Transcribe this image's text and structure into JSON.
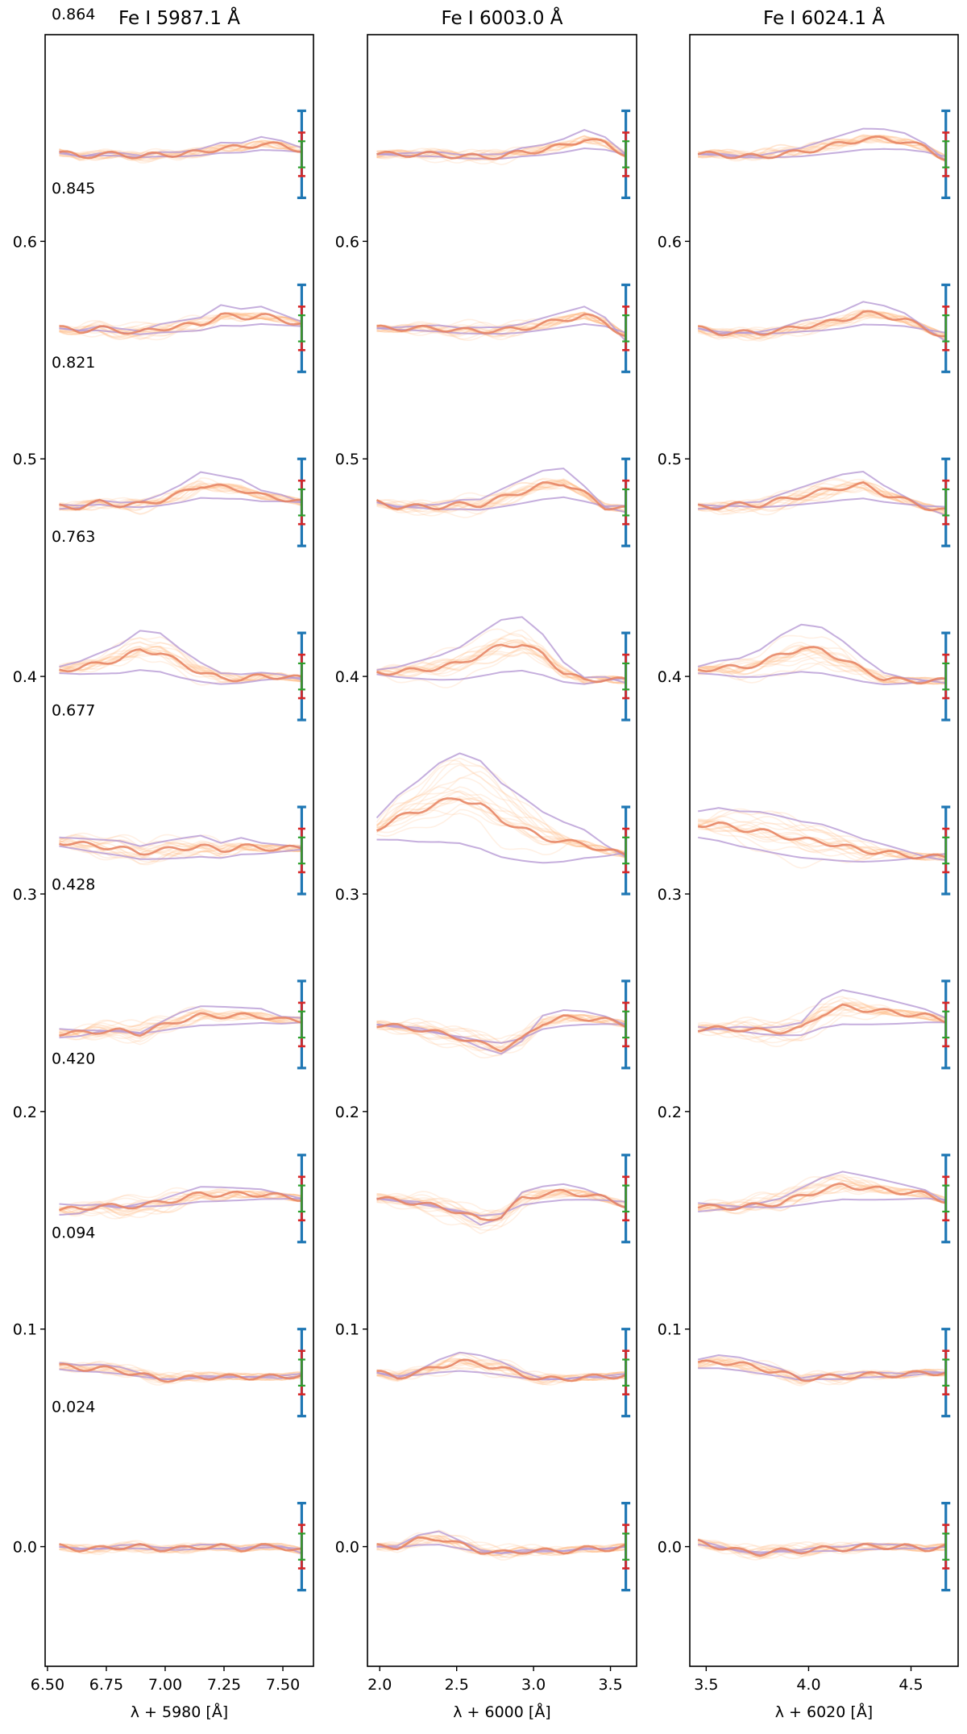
{
  "chart_data": [
    {
      "type": "line",
      "title": "Fe I 5987.1 Å",
      "xlabel": "λ + 5980 [Å]",
      "ylabel": "",
      "xlim": [
        6.49,
        7.63
      ],
      "ylim": [
        -0.055,
        0.695
      ],
      "xticks": [
        6.5,
        6.75,
        7.0,
        7.25,
        7.5
      ],
      "xtick_labels": [
        "6.50",
        "6.75",
        "7.00",
        "7.25",
        "7.50"
      ],
      "yticks": [
        0.0,
        0.1,
        0.2,
        0.3,
        0.4,
        0.5,
        0.6
      ],
      "ytick_labels": [
        "0.0",
        "0.1",
        "0.2",
        "0.3",
        "0.4",
        "0.5",
        "0.6"
      ],
      "x_range": [
        6.55,
        7.58
      ],
      "errorbar_x": 7.58,
      "row_labels": [
        "0.864",
        "0.845",
        "0.821",
        "0.763",
        "0.677",
        "0.428",
        "0.420",
        "0.094",
        "0.024"
      ],
      "row_offsets": [
        0.64,
        0.56,
        0.48,
        0.4,
        0.32,
        0.24,
        0.16,
        0.08,
        0.0
      ],
      "row_shapes": [
        [
          0.001,
          -0.001,
          0.0,
          0.0,
          -0.001,
          0.0,
          0.0,
          0.001,
          0.003,
          0.003,
          0.005,
          0.004,
          0.002
        ],
        [
          0.0,
          -0.001,
          0.0,
          -0.001,
          -0.002,
          0.0,
          0.001,
          0.002,
          0.006,
          0.005,
          0.006,
          0.004,
          0.002
        ],
        [
          -0.002,
          -0.002,
          0.0,
          -0.001,
          -0.001,
          0.001,
          0.004,
          0.008,
          0.007,
          0.006,
          0.003,
          0.002,
          0.0
        ],
        [
          0.003,
          0.004,
          0.006,
          0.008,
          0.012,
          0.011,
          0.006,
          0.002,
          -0.001,
          -0.001,
          0.0,
          0.0,
          -0.001
        ],
        [
          0.004,
          0.003,
          0.002,
          0.001,
          -0.001,
          0.0,
          0.001,
          0.002,
          0.0,
          0.002,
          0.001,
          0.001,
          0.001
        ],
        [
          -0.004,
          -0.004,
          -0.003,
          -0.003,
          -0.004,
          -0.001,
          0.002,
          0.004,
          0.004,
          0.004,
          0.004,
          0.002,
          0.002
        ],
        [
          -0.005,
          -0.005,
          -0.003,
          -0.004,
          -0.003,
          -0.002,
          0.0,
          0.002,
          0.002,
          0.002,
          0.002,
          0.001,
          0.0
        ],
        [
          0.003,
          0.002,
          0.002,
          0.001,
          -0.001,
          -0.003,
          -0.003,
          -0.002,
          -0.002,
          -0.002,
          -0.002,
          -0.002,
          -0.001
        ],
        [
          0.0,
          -0.001,
          -0.001,
          0.0,
          0.0,
          -0.001,
          -0.001,
          0.0,
          0.0,
          -0.001,
          0.0,
          0.0,
          -0.002
        ]
      ],
      "row_spread": [
        0.002,
        0.004,
        0.004,
        0.007,
        0.008,
        0.005,
        0.005,
        0.003,
        0.002
      ]
    },
    {
      "type": "line",
      "title": "Fe I 6003.0 Å",
      "xlabel": "λ + 6000 [Å]",
      "ylabel": "",
      "xlim": [
        1.92,
        3.67
      ],
      "ylim": [
        -0.055,
        0.695
      ],
      "xticks": [
        2.0,
        2.5,
        3.0,
        3.5
      ],
      "xtick_labels": [
        "2.0",
        "2.5",
        "3.0",
        "3.5"
      ],
      "yticks": [
        0.0,
        0.1,
        0.2,
        0.3,
        0.4,
        0.5,
        0.6
      ],
      "ytick_labels": [
        "0.0",
        "0.1",
        "0.2",
        "0.3",
        "0.4",
        "0.5",
        "0.6"
      ],
      "x_range": [
        1.98,
        3.6
      ],
      "errorbar_x": 3.6,
      "row_labels": [],
      "row_offsets": [
        0.64,
        0.56,
        0.48,
        0.4,
        0.32,
        0.24,
        0.16,
        0.08,
        0.0
      ],
      "row_shapes": [
        [
          0.0,
          0.0,
          0.0,
          0.0,
          -0.001,
          -0.001,
          -0.001,
          0.001,
          0.002,
          0.004,
          0.007,
          0.005,
          0.0
        ],
        [
          0.0,
          0.0,
          0.0,
          0.0,
          -0.001,
          -0.001,
          -0.001,
          0.0,
          0.002,
          0.004,
          0.006,
          0.003,
          -0.004
        ],
        [
          0.0,
          -0.002,
          -0.002,
          -0.002,
          -0.001,
          -0.001,
          0.002,
          0.005,
          0.008,
          0.009,
          0.004,
          -0.002,
          -0.003
        ],
        [
          0.002,
          0.002,
          0.003,
          0.004,
          0.006,
          0.01,
          0.014,
          0.015,
          0.01,
          0.002,
          -0.002,
          -0.001,
          -0.002
        ],
        [
          0.01,
          0.015,
          0.018,
          0.022,
          0.024,
          0.021,
          0.014,
          0.01,
          0.006,
          0.004,
          0.003,
          0.0,
          -0.002
        ],
        [
          0.0,
          -0.001,
          -0.002,
          -0.004,
          -0.006,
          -0.009,
          -0.011,
          -0.007,
          0.001,
          0.003,
          0.003,
          0.002,
          0.0
        ],
        [
          0.0,
          -0.001,
          -0.002,
          -0.004,
          -0.006,
          -0.01,
          -0.008,
          0.0,
          0.002,
          0.003,
          0.002,
          0.0,
          -0.003
        ],
        [
          0.0,
          -0.002,
          0.0,
          0.003,
          0.005,
          0.004,
          0.002,
          -0.001,
          -0.003,
          -0.003,
          -0.002,
          -0.002,
          -0.001
        ],
        [
          0.0,
          0.0,
          0.003,
          0.004,
          0.001,
          -0.002,
          -0.003,
          -0.002,
          -0.002,
          -0.002,
          -0.001,
          -0.001,
          0.0
        ]
      ],
      "row_spread": [
        0.003,
        0.004,
        0.006,
        0.01,
        0.02,
        0.006,
        0.006,
        0.004,
        0.003
      ]
    },
    {
      "type": "line",
      "title": "Fe I 6024.1 Å",
      "xlabel": "λ + 6020 [Å]",
      "ylabel": "",
      "xlim": [
        3.42,
        4.73
      ],
      "ylim": [
        -0.055,
        0.695
      ],
      "xticks": [
        3.5,
        4.0,
        4.5
      ],
      "xtick_labels": [
        "3.5",
        "4.0",
        "4.5"
      ],
      "yticks": [
        0.0,
        0.1,
        0.2,
        0.3,
        0.4,
        0.5,
        0.6
      ],
      "ytick_labels": [
        "0.0",
        "0.1",
        "0.2",
        "0.3",
        "0.4",
        "0.5",
        "0.6"
      ],
      "x_range": [
        3.46,
        4.67
      ],
      "errorbar_x": 4.67,
      "row_labels": [],
      "row_offsets": [
        0.64,
        0.56,
        0.48,
        0.4,
        0.32,
        0.24,
        0.16,
        0.08,
        0.0
      ],
      "row_shapes": [
        [
          0.0,
          0.0,
          -0.001,
          -0.001,
          0.0,
          0.001,
          0.003,
          0.005,
          0.007,
          0.007,
          0.006,
          0.003,
          -0.002
        ],
        [
          0.0,
          -0.002,
          -0.002,
          -0.002,
          -0.001,
          0.001,
          0.002,
          0.004,
          0.007,
          0.006,
          0.004,
          0.0,
          -0.004
        ],
        [
          -0.002,
          -0.002,
          -0.001,
          -0.001,
          0.001,
          0.003,
          0.005,
          0.007,
          0.008,
          0.004,
          0.001,
          -0.002,
          -0.004
        ],
        [
          0.003,
          0.004,
          0.004,
          0.006,
          0.01,
          0.013,
          0.012,
          0.008,
          0.003,
          -0.001,
          -0.002,
          -0.002,
          -0.002
        ],
        [
          0.012,
          0.012,
          0.01,
          0.009,
          0.007,
          0.005,
          0.004,
          0.002,
          0.0,
          -0.001,
          -0.002,
          -0.003,
          -0.003
        ],
        [
          -0.002,
          -0.002,
          -0.002,
          -0.003,
          -0.003,
          -0.002,
          0.005,
          0.008,
          0.007,
          0.006,
          0.005,
          0.004,
          0.002
        ],
        [
          -0.004,
          -0.004,
          -0.004,
          -0.003,
          -0.002,
          0.001,
          0.004,
          0.006,
          0.005,
          0.004,
          0.003,
          0.002,
          -0.001
        ],
        [
          0.004,
          0.005,
          0.004,
          0.002,
          0.0,
          -0.003,
          -0.002,
          -0.002,
          -0.001,
          -0.001,
          -0.001,
          0.0,
          0.0
        ],
        [
          0.002,
          0.0,
          -0.002,
          -0.003,
          -0.002,
          -0.002,
          -0.001,
          -0.001,
          0.0,
          0.0,
          0.0,
          -0.001,
          0.0
        ]
      ],
      "row_spread": [
        0.003,
        0.004,
        0.005,
        0.009,
        0.012,
        0.008,
        0.007,
        0.004,
        0.003
      ]
    }
  ],
  "errorbars": {
    "blue_halfwidth": 0.02,
    "red_halfwidth": 0.01,
    "green_halfwidth": 0.006
  },
  "colors": {
    "background": "#ffffff",
    "axes": "#000000",
    "sample_lines": "#fdbb84",
    "mean_line": "#e5805f",
    "envelope_line": "#b79ad4",
    "errorbar_blue": "#1f77b4",
    "errorbar_red": "#d62728",
    "errorbar_green": "#2ca02c"
  }
}
